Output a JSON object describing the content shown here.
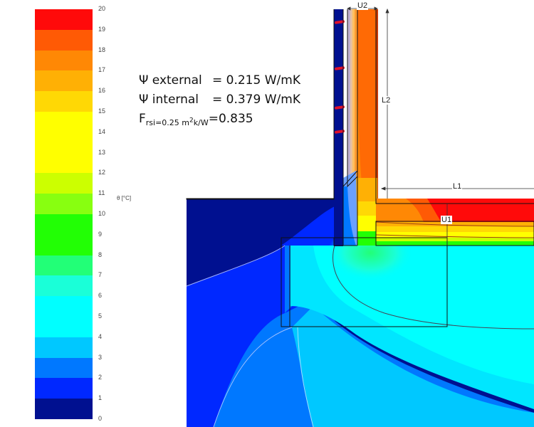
{
  "legend": {
    "unit_label": "θ [°C]",
    "ticks": [
      "20",
      "19",
      "18",
      "17",
      "16",
      "15",
      "14",
      "13",
      "12",
      "11",
      "10",
      "9",
      "8",
      "7",
      "6",
      "5",
      "4",
      "3",
      "2",
      "1",
      "0"
    ],
    "bands": [
      {
        "from": 19,
        "to": 20,
        "color": "#ff0a0a"
      },
      {
        "from": 18,
        "to": 19,
        "color": "#ff5a05"
      },
      {
        "from": 17,
        "to": 18,
        "color": "#ff8805"
      },
      {
        "from": 16,
        "to": 17,
        "color": "#ffb005"
      },
      {
        "from": 15,
        "to": 16,
        "color": "#ffd805"
      },
      {
        "from": 14,
        "to": 15,
        "color": "#ffff00"
      },
      {
        "from": 13,
        "to": 14,
        "color": "#ffff00"
      },
      {
        "from": 12,
        "to": 13,
        "color": "#ffff00"
      },
      {
        "from": 11,
        "to": 12,
        "color": "#ccff00"
      },
      {
        "from": 10,
        "to": 11,
        "color": "#88ff10"
      },
      {
        "from": 9,
        "to": 10,
        "color": "#22ff05"
      },
      {
        "from": 8,
        "to": 9,
        "color": "#22ff05"
      },
      {
        "from": 7,
        "to": 8,
        "color": "#22ff77"
      },
      {
        "from": 6,
        "to": 7,
        "color": "#1affd8"
      },
      {
        "from": 5,
        "to": 6,
        "color": "#00ffff"
      },
      {
        "from": 4,
        "to": 5,
        "color": "#00ffff"
      },
      {
        "from": 3,
        "to": 4,
        "color": "#00c8ff"
      },
      {
        "from": 2,
        "to": 3,
        "color": "#0078ff"
      },
      {
        "from": 1,
        "to": 2,
        "color": "#0028ff"
      },
      {
        "from": 0,
        "to": 1,
        "color": "#001090"
      }
    ]
  },
  "annotations": {
    "psi_external_label": "Ψ external",
    "psi_external_value": "= 0.215 W/mK",
    "psi_internal_label": "Ψ internal",
    "psi_internal_value": "= 0.379 W/mK",
    "frsi_label": "F",
    "frsi_subscript": "rsi=0.25 m",
    "frsi_sup": "2",
    "frsi_subscript_tail": "k/W",
    "frsi_value": "=0.835"
  },
  "dimensions": {
    "u2": "U2",
    "l2": "L2",
    "l1": "L1",
    "u1": "U1"
  }
}
